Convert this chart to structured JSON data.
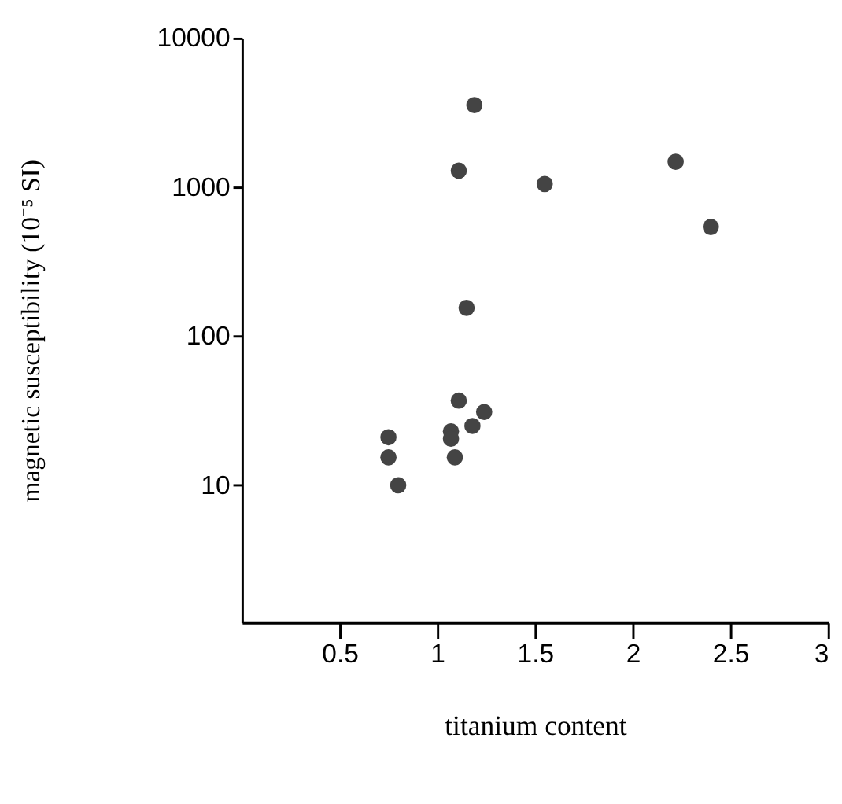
{
  "chart_data": {
    "type": "scatter",
    "xlabel": "titanium content",
    "ylabel": "magnetic susceptibility (10⁻⁵ SI)",
    "x": [
      1.19,
      1.11,
      1.55,
      2.22,
      2.4,
      1.15,
      1.11,
      1.24,
      1.18,
      1.07,
      1.07,
      1.09,
      0.75,
      0.75,
      0.8
    ],
    "series": [
      {
        "color": "#444444",
        "values": [
          3550,
          1290,
          1050,
          1480,
          540,
          155,
          37,
          31,
          25,
          23,
          20.5,
          15.4,
          21,
          15.4,
          10
        ]
      }
    ],
    "log": "y",
    "marker": "circle",
    "grid": false,
    "xlim": [
      0,
      3
    ],
    "xticks": [
      0.5,
      1,
      1.5,
      2,
      2.5,
      3
    ],
    "ylim": [
      1.2,
      10000
    ],
    "yticks": [
      10,
      100,
      1000,
      10000
    ]
  }
}
